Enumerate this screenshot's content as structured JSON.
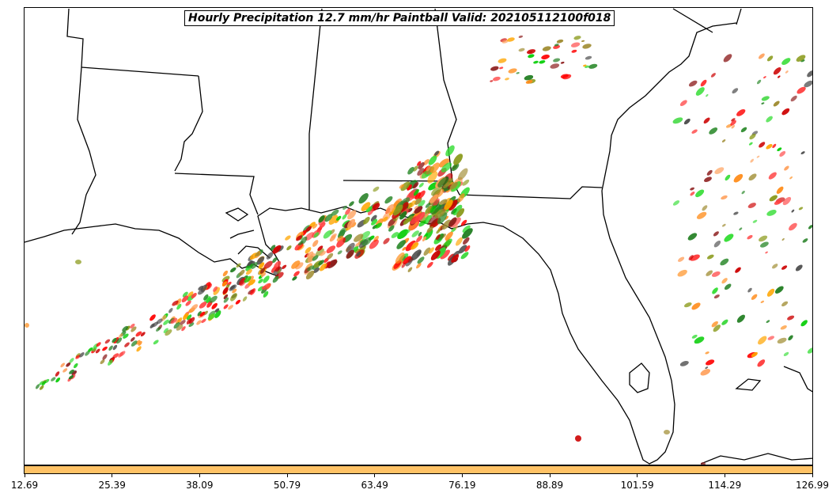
{
  "title": "Hourly Precipitation 12.7 mm/hr Paintball Valid: 202105112100f018",
  "colorbar": {
    "color": "#ffc266",
    "tick_labels": [
      "12.69",
      "25.39",
      "38.09",
      "50.79",
      "63.49",
      "76.19",
      "88.89",
      "101.59",
      "114.29",
      "126.99"
    ]
  },
  "member_colors": [
    "#ff0000",
    "#cc0000",
    "#8b1a1a",
    "#ff8c1a",
    "#ff9f5a",
    "#ff4040",
    "#00cc00",
    "#33dd33",
    "#1a7a1a",
    "#2e8b2e",
    "#8a9a1a",
    "#9e8a2e",
    "#4a4a4a",
    "#ffa500"
  ]
}
